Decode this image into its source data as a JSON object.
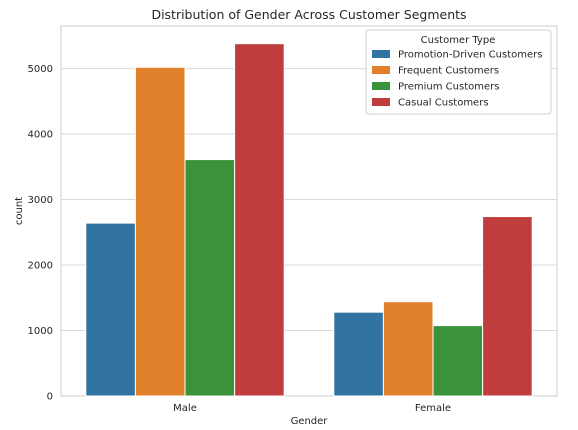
{
  "chart_data": {
    "type": "bar",
    "title": "Distribution of Gender Across Customer Segments",
    "xlabel": "Gender",
    "ylabel": "count",
    "categories": [
      "Male",
      "Female"
    ],
    "ylim": [
      0,
      5650
    ],
    "yticks": [
      0,
      1000,
      2000,
      3000,
      4000,
      5000
    ],
    "grid": true,
    "legend_title": "Customer Type",
    "legend_position": "top-right",
    "series": [
      {
        "name": "Promotion-Driven Customers",
        "color": "#3274a1",
        "values": [
          2640,
          1280
        ]
      },
      {
        "name": "Frequent Customers",
        "color": "#e1812c",
        "values": [
          5020,
          1440
        ]
      },
      {
        "name": "Premium Customers",
        "color": "#3a923a",
        "values": [
          3610,
          1075
        ]
      },
      {
        "name": "Casual Customers",
        "color": "#c03d3e",
        "values": [
          5380,
          2740
        ]
      }
    ]
  }
}
